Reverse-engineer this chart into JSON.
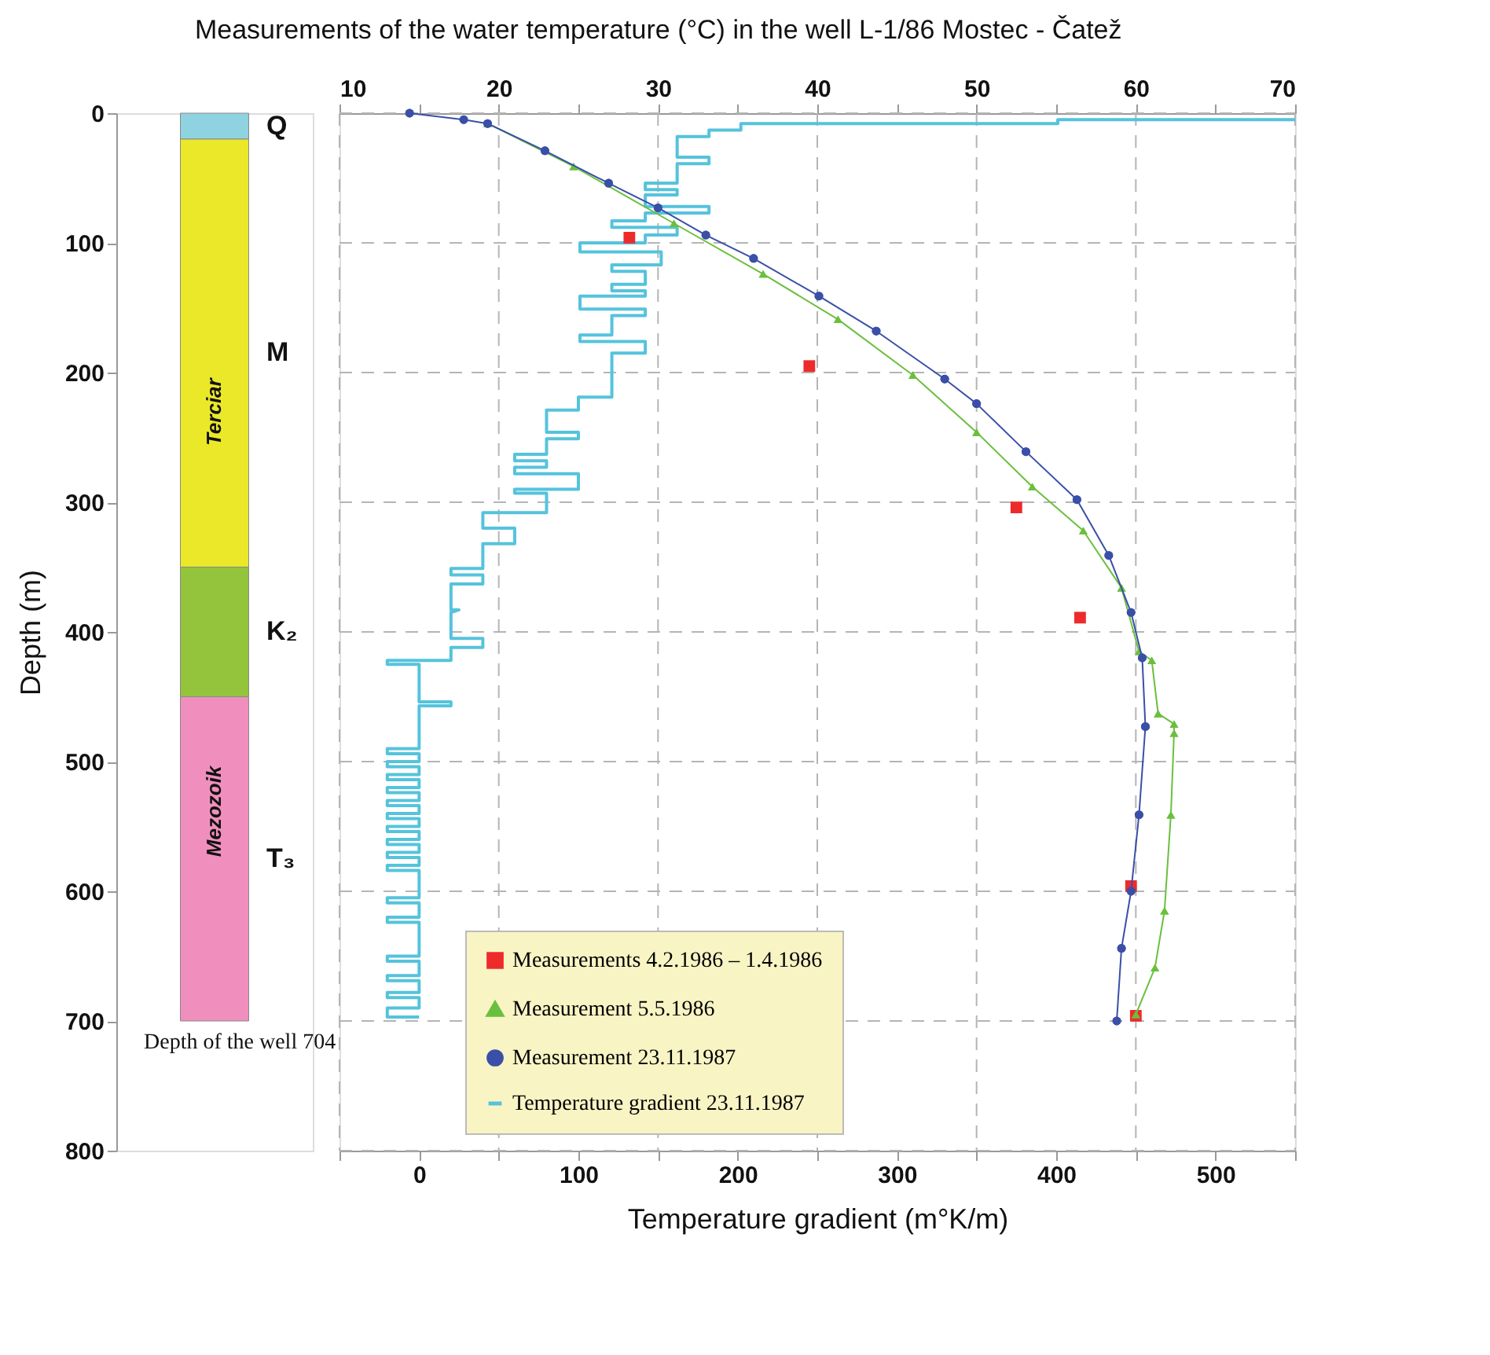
{
  "chart_data": [
    {
      "type": "bar",
      "stacked": true,
      "categories": [
        null
      ],
      "ylabel": "Depth (m)",
      "ylim": [
        800,
        0
      ],
      "yticks": [
        0,
        100,
        200,
        300,
        400,
        500,
        600,
        700,
        800
      ],
      "series": [
        {
          "name": "Q",
          "color": "#8fd3e0",
          "values": [
            20
          ]
        },
        {
          "name": "M",
          "color": "#ebe82a",
          "values": [
            330
          ]
        },
        {
          "name": "K₂",
          "color": "#94c43c",
          "values": [
            100
          ]
        },
        {
          "name": "T₃",
          "color": "#f08fbd",
          "values": [
            250
          ]
        }
      ],
      "annotations": [
        "Terciar",
        "Mezozoik",
        "Depth of the well 704"
      ],
      "tick_labels": "y",
      "legend": false
    },
    {
      "type": "line",
      "title": "Measurements of the water temperature (°C) in the well L-1/86 Mostec - Čatež",
      "xlabel": "Temperature gradient (m°K/m)",
      "xlim": [
        -50,
        550
      ],
      "xticks": [
        {
          "value": -50,
          "label": null
        },
        0,
        {
          "value": 50,
          "label": null
        },
        100,
        {
          "value": 150,
          "label": null
        },
        200,
        {
          "value": 250,
          "label": null
        },
        300,
        {
          "value": 350,
          "label": null
        },
        400,
        {
          "value": 450,
          "label": null
        },
        500,
        {
          "value": 550,
          "label": null
        }
      ],
      "x2lim": [
        10,
        70
      ],
      "x2ticks": [
        10,
        {
          "value": 15,
          "label": null
        },
        20,
        {
          "value": 25,
          "label": null
        },
        30,
        {
          "value": 35,
          "label": null
        },
        40,
        {
          "value": 45,
          "label": null
        },
        50,
        {
          "value": 55,
          "label": null
        },
        60,
        {
          "value": 65,
          "label": null
        },
        70
      ],
      "ylim": [
        800,
        0
      ],
      "yticks": [
        0,
        100,
        200,
        300,
        400,
        500,
        600,
        700,
        800
      ],
      "grid": true,
      "legend": "bottom",
      "tick_labels": "x",
      "line_style": "solid",
      "series": [
        {
          "name": "Measurements 4.2.1986 – 1.4.1986",
          "type": "scatter",
          "marker": "square",
          "axis": "x2",
          "color": "#ee2b2b",
          "x": [
            28.2,
            39.5,
            52.5,
            56.5,
            59.7,
            60.0
          ],
          "values": [
            96,
            195,
            304,
            389,
            596,
            696
          ]
        },
        {
          "name": "Measurement 5.5.1986",
          "type": "line",
          "marker": "triangle",
          "axis": "x2",
          "color": "#6bbf3e",
          "x": [
            19.3,
            24.7,
            31.0,
            36.6,
            41.3,
            46.0,
            50.0,
            53.5,
            56.7,
            59.1,
            60.2,
            61.0,
            61.4,
            62.4,
            62.4,
            62.2,
            61.8,
            61.2,
            60.0
          ],
          "values": [
            8,
            41,
            85,
            124,
            159,
            202,
            246,
            288,
            322,
            366,
            415,
            422,
            463,
            471,
            478,
            541,
            615,
            659,
            695
          ]
        },
        {
          "name": "Measurement 23.11.1987",
          "type": "line",
          "marker": "circle",
          "axis": "x2",
          "color": "#3a4fa8",
          "x": [
            14.4,
            17.8,
            19.3,
            22.9,
            26.9,
            30.0,
            33.0,
            36.0,
            40.1,
            43.7,
            48.0,
            50.0,
            53.1,
            56.3,
            58.3,
            59.7,
            60.4,
            60.6,
            60.2,
            59.7,
            59.1,
            58.8
          ],
          "values": [
            0,
            5,
            8,
            29,
            54,
            73,
            94,
            112,
            141,
            168,
            205,
            224,
            261,
            298,
            341,
            385,
            420,
            473,
            541,
            600,
            644,
            700
          ]
        },
        {
          "name": "Temperature gradient 23.11.1987",
          "type": "line",
          "marker": "none",
          "color": "#55c3dc",
          "x": [
            550,
            401,
            401,
            202,
            202,
            182,
            182,
            162,
            162,
            182,
            182,
            162,
            162,
            142,
            142,
            162,
            162,
            142,
            142,
            182,
            182,
            142,
            142,
            121,
            121,
            162,
            162,
            142,
            142,
            101,
            101,
            152,
            152,
            121,
            121,
            142,
            142,
            121,
            121,
            142,
            142,
            101,
            101,
            142,
            142,
            121,
            121,
            101,
            101,
            142,
            142,
            121,
            121,
            100,
            100,
            80,
            80,
            100,
            100,
            80,
            80,
            60,
            60,
            80,
            80,
            60,
            60,
            100,
            100,
            60,
            60,
            80,
            80,
            40,
            40,
            60,
            60,
            40,
            40,
            20,
            20,
            40,
            40,
            20,
            20,
            25,
            20,
            20,
            40,
            40,
            20,
            20,
            -20,
            -20,
            0,
            0,
            20,
            20,
            0,
            0,
            -20,
            -20,
            0,
            0,
            -20,
            -20,
            0,
            0,
            -20,
            -20,
            0,
            0,
            -20,
            -20,
            0,
            0,
            -20,
            -20,
            0,
            0,
            -20,
            -20,
            0,
            0,
            -20,
            -20,
            0,
            0,
            -20,
            -20,
            0,
            0,
            -20,
            -20,
            0,
            0,
            -20,
            -20,
            0,
            0,
            -20,
            -20,
            0,
            0,
            -20,
            -20,
            0,
            0,
            -20,
            -20,
            0,
            0,
            -20,
            -20,
            0,
            0,
            -20,
            -20,
            0,
            0,
            -20,
            -20,
            0
          ],
          "values": [
            5,
            5,
            8,
            8,
            13,
            13,
            18,
            18,
            34,
            34,
            39,
            39,
            54,
            54,
            59,
            59,
            63,
            63,
            72,
            72,
            77,
            77,
            83,
            83,
            88,
            88,
            94,
            94,
            100,
            100,
            107,
            107,
            117,
            117,
            122,
            122,
            132,
            132,
            137,
            137,
            141,
            141,
            151,
            151,
            156,
            156,
            171,
            171,
            176,
            176,
            185,
            185,
            219,
            219,
            229,
            229,
            246,
            246,
            251,
            251,
            263,
            263,
            268,
            268,
            273,
            273,
            278,
            278,
            290,
            290,
            293,
            293,
            308,
            308,
            320,
            320,
            332,
            332,
            351,
            351,
            356,
            356,
            363,
            363,
            383,
            383,
            385,
            405,
            405,
            412,
            412,
            422,
            422,
            425,
            425,
            454,
            454,
            457,
            457,
            490,
            490,
            494,
            494,
            500,
            500,
            504,
            504,
            510,
            510,
            514,
            514,
            520,
            520,
            524,
            524,
            530,
            530,
            534,
            534,
            540,
            540,
            544,
            544,
            550,
            550,
            554,
            554,
            560,
            560,
            564,
            564,
            570,
            570,
            574,
            574,
            580,
            580,
            584,
            584,
            605,
            605,
            609,
            609,
            620,
            620,
            624,
            624,
            650,
            650,
            654,
            654,
            665,
            665,
            669,
            669,
            678,
            678,
            682,
            682,
            690,
            690,
            697,
            697
          ]
        }
      ]
    }
  ]
}
